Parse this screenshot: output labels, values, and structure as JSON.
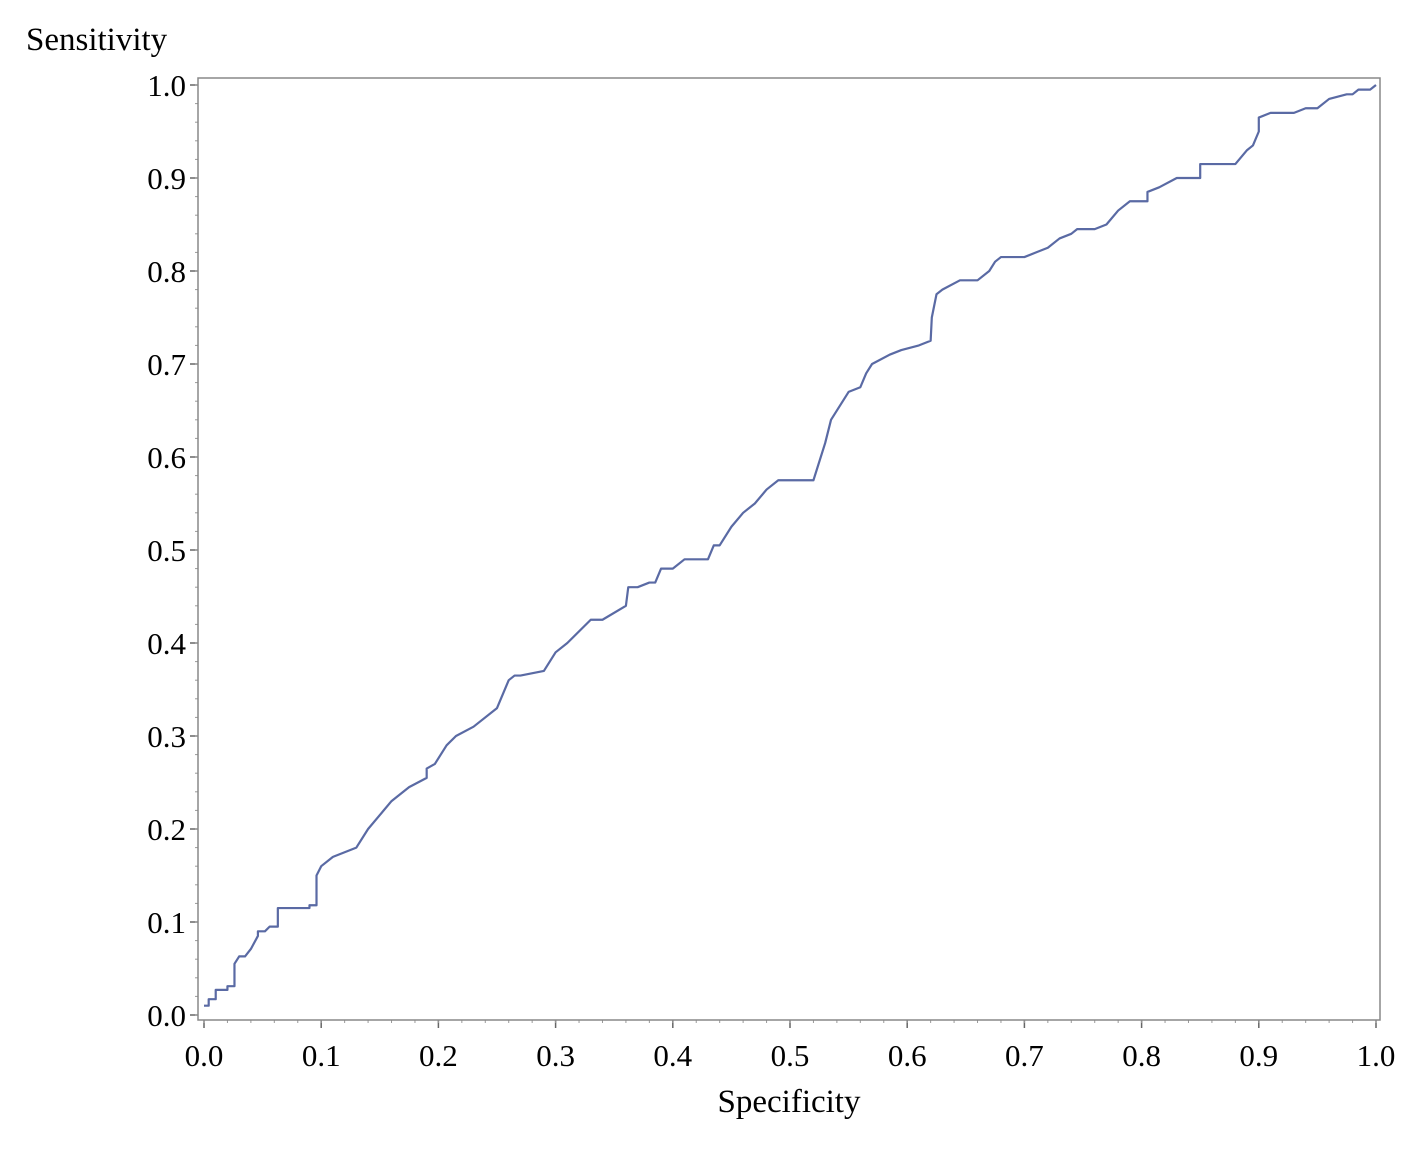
{
  "chart_data": {
    "type": "line",
    "xlabel": "Specificity",
    "ylabel": "Sensitivity",
    "xlim": [
      0.0,
      1.0
    ],
    "ylim": [
      0.0,
      1.0
    ],
    "x_ticks": [
      "0.0",
      "0.1",
      "0.2",
      "0.3",
      "0.4",
      "0.5",
      "0.6",
      "0.7",
      "0.8",
      "0.9",
      "1.0"
    ],
    "y_ticks": [
      "0.0",
      "0.1",
      "0.2",
      "0.3",
      "0.4",
      "0.5",
      "0.6",
      "0.7",
      "0.8",
      "0.9",
      "1.0"
    ],
    "grid": false,
    "legend": "none",
    "line_color": "#5a6aa4",
    "series": [
      {
        "x": [
          0.0,
          0.004,
          0.004,
          0.01,
          0.01,
          0.02,
          0.02,
          0.026,
          0.026,
          0.03,
          0.035,
          0.04,
          0.046,
          0.046,
          0.052,
          0.056,
          0.063,
          0.063,
          0.07,
          0.09,
          0.09,
          0.096,
          0.096,
          0.1,
          0.11,
          0.13,
          0.14,
          0.15,
          0.16,
          0.175,
          0.19,
          0.19,
          0.197,
          0.207,
          0.215,
          0.23,
          0.25,
          0.26,
          0.265,
          0.27,
          0.29,
          0.3,
          0.31,
          0.33,
          0.34,
          0.36,
          0.362,
          0.37,
          0.38,
          0.385,
          0.39,
          0.4,
          0.41,
          0.42,
          0.43,
          0.435,
          0.44,
          0.45,
          0.46,
          0.47,
          0.48,
          0.49,
          0.495,
          0.5,
          0.52,
          0.53,
          0.535,
          0.55,
          0.56,
          0.565,
          0.57,
          0.585,
          0.595,
          0.61,
          0.62,
          0.621,
          0.625,
          0.63,
          0.645,
          0.66,
          0.67,
          0.675,
          0.68,
          0.7,
          0.71,
          0.72,
          0.73,
          0.74,
          0.745,
          0.76,
          0.77,
          0.78,
          0.79,
          0.805,
          0.805,
          0.815,
          0.83,
          0.85,
          0.85,
          0.88,
          0.89,
          0.895,
          0.9,
          0.9,
          0.91,
          0.93,
          0.94,
          0.95,
          0.96,
          0.975,
          0.98,
          0.985,
          0.995,
          1.0
        ],
        "y": [
          0.01,
          0.01,
          0.017,
          0.017,
          0.027,
          0.027,
          0.031,
          0.031,
          0.055,
          0.063,
          0.063,
          0.071,
          0.085,
          0.09,
          0.09,
          0.095,
          0.095,
          0.115,
          0.115,
          0.115,
          0.118,
          0.118,
          0.15,
          0.16,
          0.17,
          0.18,
          0.2,
          0.215,
          0.23,
          0.245,
          0.255,
          0.265,
          0.27,
          0.29,
          0.3,
          0.31,
          0.33,
          0.36,
          0.365,
          0.365,
          0.37,
          0.39,
          0.4,
          0.425,
          0.425,
          0.44,
          0.46,
          0.46,
          0.465,
          0.465,
          0.48,
          0.48,
          0.49,
          0.49,
          0.49,
          0.505,
          0.505,
          0.525,
          0.54,
          0.55,
          0.565,
          0.575,
          0.575,
          0.575,
          0.575,
          0.615,
          0.64,
          0.67,
          0.675,
          0.69,
          0.7,
          0.71,
          0.715,
          0.72,
          0.725,
          0.75,
          0.775,
          0.78,
          0.79,
          0.79,
          0.8,
          0.81,
          0.815,
          0.815,
          0.82,
          0.825,
          0.835,
          0.84,
          0.845,
          0.845,
          0.85,
          0.865,
          0.875,
          0.875,
          0.885,
          0.89,
          0.9,
          0.9,
          0.915,
          0.915,
          0.93,
          0.935,
          0.95,
          0.965,
          0.97,
          0.97,
          0.975,
          0.975,
          0.985,
          0.99,
          0.99,
          0.995,
          0.995,
          1.0
        ]
      }
    ]
  }
}
